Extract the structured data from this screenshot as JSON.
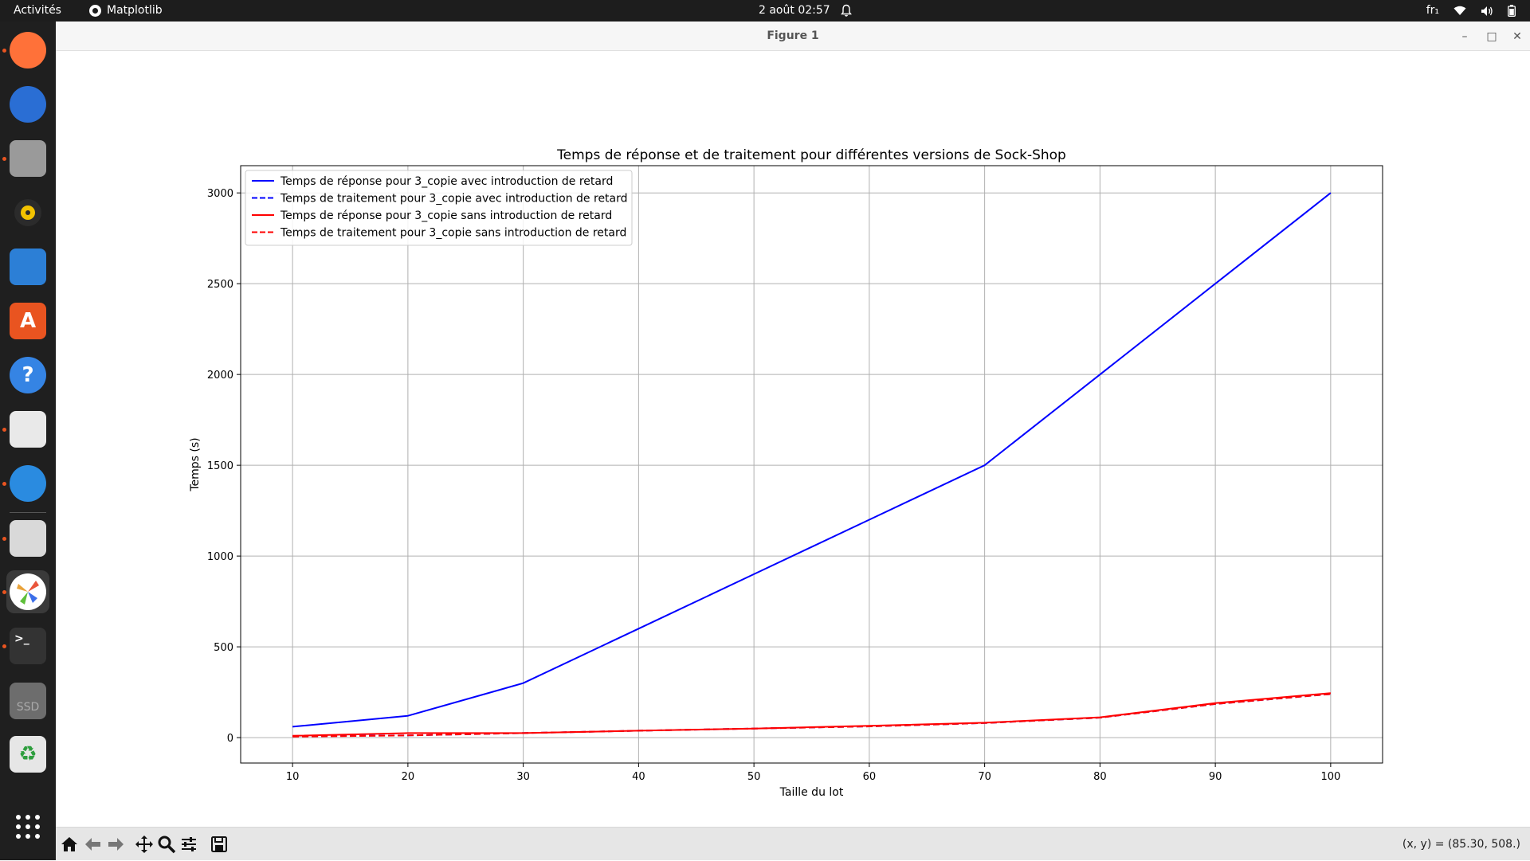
{
  "topbar": {
    "activities": "Activités",
    "app_name": "Matplotlib",
    "clock": "2 août  02:57",
    "keyboard_layout": "fr₁"
  },
  "dock": {
    "items": [
      {
        "name": "firefox",
        "icon": "firefox-icon",
        "color": "#ff7139",
        "running": true
      },
      {
        "name": "thunderbird",
        "icon": "thunderbird-icon",
        "color": "#2a6ed4",
        "running": false
      },
      {
        "name": "files",
        "icon": "files-icon",
        "color": "#9a9a9a",
        "running": true
      },
      {
        "name": "rhythmbox",
        "icon": "rhythmbox-icon",
        "color": "#f2c200",
        "running": false
      },
      {
        "name": "libreoffice-writer",
        "icon": "writer-icon",
        "color": "#2c7fd6",
        "running": false
      },
      {
        "name": "app-center",
        "icon": "app-center-icon",
        "color": "#e95420",
        "running": false
      },
      {
        "name": "help",
        "icon": "help-icon",
        "color": "#3584e4",
        "running": false
      },
      {
        "name": "text-editor",
        "icon": "text-editor-icon",
        "color": "#e9e9e9",
        "running": true
      },
      {
        "name": "vscode",
        "icon": "vscode-icon",
        "color": "#2a8be0",
        "running": true
      },
      {
        "name": "image-viewer",
        "icon": "image-viewer-icon",
        "color": "#d9d9d9",
        "running": true
      },
      {
        "name": "matplotlib",
        "icon": "matplotlib-icon",
        "color": "#ffffff",
        "running": true,
        "active": true
      },
      {
        "name": "terminal",
        "icon": "terminal-icon",
        "color": "#333333",
        "running": true
      },
      {
        "name": "ssd",
        "icon": "ssd-drive-icon",
        "color": "#6d6d6d",
        "running": false,
        "label": "SSD"
      },
      {
        "name": "trash",
        "icon": "trash-icon",
        "color": "#e6e6e6",
        "running": false
      },
      {
        "name": "show-apps",
        "icon": "show-apps-grid-icon",
        "color": "#ffffff",
        "running": false
      }
    ]
  },
  "window": {
    "title": "Figure 1",
    "coords_readout": "(x, y) = (85.30, 508.)",
    "toolbar": [
      "home-icon",
      "back-arrow-icon",
      "forward-arrow-icon",
      "pan-move-icon",
      "zoom-magnifier-icon",
      "configure-subplots-icon",
      "save-floppy-icon"
    ]
  },
  "chart_data": {
    "type": "line",
    "title": "Temps de réponse et de traitement pour différentes versions de Sock-Shop",
    "xlabel": "Taille du lot",
    "ylabel": "Temps (s)",
    "x": [
      10,
      20,
      30,
      40,
      50,
      60,
      70,
      80,
      90,
      100
    ],
    "xlim": [
      5.5,
      104.5
    ],
    "ylim": [
      -140,
      3150
    ],
    "xticks": [
      10,
      20,
      30,
      40,
      50,
      60,
      70,
      80,
      90,
      100
    ],
    "yticks": [
      0,
      500,
      1000,
      1500,
      2000,
      2500,
      3000
    ],
    "grid": true,
    "legend_position": "top-left",
    "series": [
      {
        "name": "Temps de réponse pour 3_copie avec introduction de retard",
        "color": "#0000ff",
        "style": "solid",
        "values": [
          60,
          120,
          300,
          600,
          900,
          1200,
          1500,
          2000,
          2500,
          3000
        ]
      },
      {
        "name": "Temps de traitement pour 3_copie avec introduction de retard",
        "color": "#0000ff",
        "style": "dashed",
        "values": [
          8,
          12,
          25,
          38,
          50,
          62,
          80,
          110,
          185,
          240
        ]
      },
      {
        "name": "Temps de réponse pour 3_copie sans introduction de retard",
        "color": "#ff0000",
        "style": "solid",
        "values": [
          10,
          25,
          25,
          38,
          50,
          65,
          82,
          112,
          190,
          245
        ]
      },
      {
        "name": "Temps de traitement pour 3_copie sans introduction de retard",
        "color": "#ff0000",
        "style": "dashed",
        "values": [
          5,
          12,
          25,
          38,
          50,
          62,
          80,
          110,
          185,
          240
        ]
      }
    ]
  }
}
